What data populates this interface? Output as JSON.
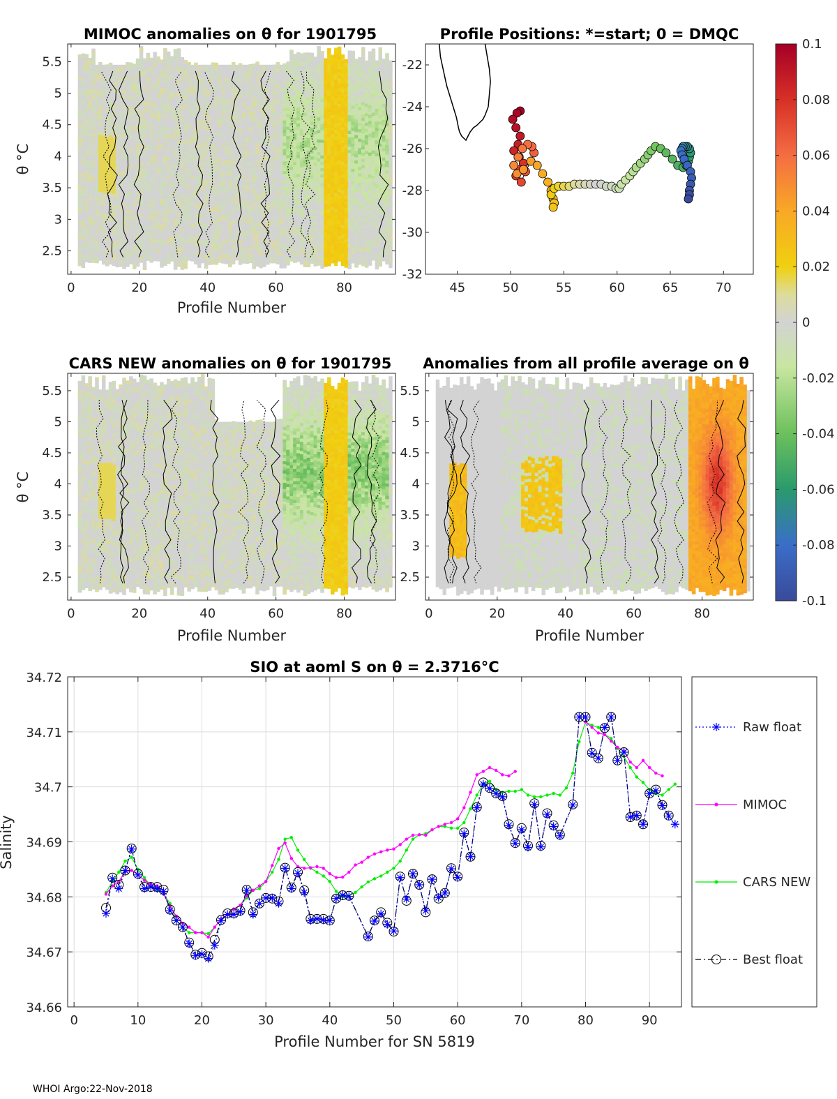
{
  "panels": {
    "mimoc": {
      "title": "MIMOC anomalies on θ  for 1901795",
      "xlabel": "Profile Number",
      "ylabel": "θ °C",
      "xticks": [
        "0",
        "20",
        "40",
        "60",
        "80"
      ],
      "yticks": [
        "2.5",
        "3",
        "3.5",
        "4",
        "4.5",
        "5",
        "5.5"
      ]
    },
    "positions": {
      "title": "Profile Positions: *=start; 0 = DMQC",
      "xticks": [
        "45",
        "50",
        "55",
        "60",
        "65",
        "70"
      ],
      "yticks": [
        "-22",
        "-24",
        "-26",
        "-28",
        "-30",
        "-32"
      ]
    },
    "cars": {
      "title": "CARS NEW anomalies on θ for 1901795",
      "xlabel": "Profile Number",
      "ylabel": "θ °C",
      "xticks": [
        "0",
        "20",
        "40",
        "60",
        "80"
      ],
      "yticks": [
        "2.5",
        "3",
        "3.5",
        "4",
        "4.5",
        "5",
        "5.5"
      ]
    },
    "average": {
      "title": "Anomalies from all profile average on θ",
      "xlabel": "Profile Number",
      "xticks": [
        "0",
        "20",
        "40",
        "60",
        "80"
      ],
      "yticks": [
        "2.5",
        "3",
        "3.5",
        "4",
        "4.5",
        "5",
        "5.5"
      ]
    }
  },
  "colorbar": {
    "ticks": [
      "0.1",
      "0.08",
      "0.06",
      "0.04",
      "0.02",
      "0",
      "-0.02",
      "-0.04",
      "-0.06",
      "-0.08",
      "-0.1"
    ],
    "stops": [
      "#a50026",
      "#d73027",
      "#f46d43",
      "#f9a825",
      "#f0d010",
      "#dcdc9c",
      "#d3d3d3",
      "#c8e6a0",
      "#6cc05c",
      "#2a9a6c",
      "#3a6ec8",
      "#3a4a9a"
    ]
  },
  "track": {
    "lon": [
      50.9,
      50.6,
      50.2,
      50.5,
      50.9,
      50.7,
      50.3,
      50.8,
      51.2,
      50.9,
      50.5,
      51.0,
      51.4,
      51.9,
      52.2,
      52.0,
      51.6,
      51.1,
      50.7,
      50.3,
      50.6,
      51.2,
      51.9,
      52.5,
      53.0,
      53.5,
      53.8,
      54.0,
      54.1,
      54.0,
      53.8,
      54.1,
      54.5,
      55.0,
      55.5,
      56.0,
      56.5,
      57.0,
      57.5,
      58.0,
      58.5,
      59.0,
      59.5,
      59.9,
      60.2,
      60.4,
      60.8,
      61.2,
      61.5,
      61.8,
      62.2,
      62.6,
      62.9,
      63.2,
      63.6,
      64.1,
      64.6,
      65.2,
      65.7,
      66.2,
      66.5,
      66.7,
      66.8,
      66.9,
      66.8,
      66.6,
      66.4,
      66.2,
      66.1,
      66.0,
      66.1,
      66.3,
      66.6,
      66.9,
      67.0,
      66.9,
      66.8,
      66.8,
      66.7
    ],
    "lat": [
      -24.2,
      -24.3,
      -24.6,
      -25.0,
      -25.4,
      -25.8,
      -26.1,
      -26.4,
      -26.7,
      -27.0,
      -27.3,
      -27.6,
      -27.1,
      -26.6,
      -26.2,
      -25.9,
      -25.8,
      -26.0,
      -26.4,
      -26.8,
      -27.2,
      -27.0,
      -26.6,
      -26.8,
      -27.2,
      -27.6,
      -28.0,
      -28.4,
      -28.6,
      -28.8,
      -28.2,
      -27.9,
      -27.8,
      -27.8,
      -27.8,
      -27.7,
      -27.7,
      -27.7,
      -27.7,
      -27.7,
      -27.7,
      -27.8,
      -27.8,
      -27.9,
      -27.9,
      -27.7,
      -27.5,
      -27.3,
      -27.1,
      -26.9,
      -26.7,
      -26.5,
      -26.3,
      -26.1,
      -25.9,
      -26.0,
      -26.2,
      -26.5,
      -26.8,
      -26.9,
      -26.8,
      -26.6,
      -26.4,
      -26.2,
      -26.0,
      -25.9,
      -25.9,
      -25.9,
      -26.0,
      -26.1,
      -26.3,
      -26.5,
      -26.8,
      -27.1,
      -27.4,
      -27.7,
      -28.0,
      -28.2,
      -28.4
    ],
    "coast_lon": [
      43.3,
      43.4,
      43.7,
      44.0,
      44.3,
      44.6,
      44.9,
      45.1,
      45.2,
      45.4,
      45.6,
      45.8,
      46.0,
      46.2,
      46.5,
      46.8,
      47.0,
      47.2,
      47.4,
      47.6,
      47.9,
      48.0,
      48.1,
      48.0,
      47.8,
      47.6
    ],
    "coast_lat": [
      -21.0,
      -21.6,
      -22.3,
      -23.0,
      -23.5,
      -24.0,
      -24.5,
      -25.0,
      -25.2,
      -25.4,
      -25.5,
      -25.6,
      -25.4,
      -25.2,
      -25.0,
      -24.9,
      -24.8,
      -24.7,
      -24.6,
      -24.4,
      -24.0,
      -23.4,
      -22.8,
      -22.2,
      -21.6,
      -21.0
    ]
  },
  "chart_data": {
    "type": "line",
    "title": "SIO at aoml S on θ = 2.3716°C",
    "xlabel": "Profile Number for SN 5819",
    "ylabel": "Salinity",
    "xlim": [
      -1,
      95
    ],
    "ylim": [
      34.66,
      34.72
    ],
    "xticks": [
      "0",
      "10",
      "20",
      "30",
      "40",
      "50",
      "60",
      "70",
      "80",
      "90"
    ],
    "yticks": [
      "34.66",
      "34.67",
      "34.68",
      "34.69",
      "34.7",
      "34.71",
      "34.72"
    ],
    "series": [
      {
        "name": "Raw float",
        "color": "#0000ff",
        "marker": "star",
        "x": [
          5,
          6,
          7,
          8,
          9,
          10,
          11,
          12,
          13,
          14,
          15,
          16,
          17,
          18,
          19,
          20,
          21,
          22,
          23,
          24,
          25,
          26,
          27,
          28,
          29,
          30,
          31,
          32,
          33,
          34,
          35,
          36,
          37,
          38,
          39,
          40,
          41,
          42,
          43,
          46,
          47,
          48,
          49,
          50,
          51,
          52,
          53,
          54,
          55,
          56,
          57,
          58,
          59,
          60,
          61,
          62,
          63,
          64,
          65,
          66,
          67,
          68,
          69,
          70,
          71,
          72,
          73,
          74,
          75,
          76,
          78,
          79,
          80,
          81,
          82,
          83,
          84,
          85,
          86,
          87,
          88,
          89,
          90,
          91,
          92,
          93,
          94
        ],
        "values": [
          34.677,
          34.6833,
          34.6815,
          34.6848,
          34.6887,
          34.684,
          34.6815,
          34.6818,
          34.6815,
          34.681,
          34.6775,
          34.6757,
          34.6745,
          34.6715,
          34.6693,
          34.6696,
          34.6688,
          34.6712,
          34.6757,
          34.6768,
          34.6768,
          34.6773,
          34.6812,
          34.6768,
          34.6788,
          34.6798,
          34.6798,
          34.6788,
          34.6852,
          34.6815,
          34.6843,
          34.6808,
          34.6757,
          34.676,
          34.6758,
          34.6757,
          34.6797,
          34.6803,
          34.6801,
          34.6727,
          34.6756,
          34.6769,
          34.675,
          34.6738,
          34.6835,
          34.6796,
          34.6842,
          34.6822,
          34.6775,
          34.6832,
          34.6799,
          34.6807,
          34.6851,
          34.6835,
          34.6915,
          34.6873,
          34.6962,
          34.7005,
          34.6997,
          34.6988,
          34.6982,
          34.693,
          34.6897,
          34.6922,
          34.689,
          34.6968,
          34.6891,
          34.695,
          34.6928,
          34.6911,
          34.6967,
          34.7127,
          34.7127,
          34.7061,
          34.7052,
          34.7108,
          34.7127,
          34.7048,
          34.7063,
          34.6945,
          34.6948,
          34.6932,
          34.6988,
          34.6993,
          34.6966,
          34.6947,
          34.6932
        ]
      },
      {
        "name": "MIMOC",
        "color": "#ff00ff",
        "marker": "dot",
        "x": [
          5,
          6,
          7,
          8,
          9,
          10,
          11,
          12,
          13,
          14,
          15,
          16,
          17,
          18,
          19,
          20,
          21,
          22,
          23,
          24,
          25,
          26,
          27,
          28,
          29,
          30,
          31,
          32,
          33,
          34,
          35,
          36,
          37,
          38,
          39,
          40,
          41,
          42,
          43,
          44,
          45,
          46,
          47,
          48,
          49,
          50,
          51,
          52,
          53,
          54,
          55,
          56,
          57,
          58,
          59,
          60,
          61,
          62,
          63,
          64,
          65,
          66,
          67,
          68,
          69
        ],
        "values": [
          34.6805,
          34.682,
          34.6828,
          34.6846,
          34.6848,
          34.684,
          34.683,
          34.6823,
          34.682,
          34.6805,
          34.6782,
          34.6765,
          34.6752,
          34.6745,
          34.6735,
          34.6735,
          34.6727,
          34.6745,
          34.676,
          34.6768,
          34.6778,
          34.6785,
          34.6802,
          34.6812,
          34.682,
          34.6828,
          34.6857,
          34.6888,
          34.6898,
          34.687,
          34.6855,
          34.6852,
          34.6853,
          34.6855,
          34.6852,
          34.6842,
          34.6835,
          34.6836,
          34.6845,
          34.6858,
          34.6863,
          34.6872,
          34.6878,
          34.6882,
          34.6885,
          34.6887,
          34.6895,
          34.6905,
          34.6912,
          34.6913,
          34.6912,
          34.6922,
          34.6928,
          34.6932,
          34.6935,
          34.6942,
          34.6962,
          34.699,
          34.7022,
          34.7028,
          34.7035,
          34.703,
          34.7022,
          34.702,
          34.7028
        ]
      },
      {
        "name": "MIMOC",
        "color": "#ff00ff",
        "marker": "dot",
        "x": [
          80,
          81,
          82,
          83,
          84,
          85,
          86,
          87,
          88,
          89,
          90,
          91,
          92
        ],
        "values": [
          34.7118,
          34.7108,
          34.7098,
          34.7095,
          34.7083,
          34.7072,
          34.7065,
          34.7045,
          34.7035,
          34.7048,
          34.7035,
          34.7025,
          34.702
        ]
      },
      {
        "name": "CARS NEW",
        "color": "#00ee00",
        "marker": "dot",
        "x": [
          5,
          6,
          7,
          8,
          9,
          10,
          11,
          12,
          13,
          14,
          15,
          16,
          17,
          18,
          19,
          20,
          21,
          22,
          23,
          24,
          25,
          26,
          27,
          28,
          29,
          30,
          31,
          32,
          33,
          34,
          35,
          36,
          37,
          38,
          39,
          40,
          41,
          42,
          43,
          44,
          45,
          46,
          47,
          48,
          49,
          50,
          51,
          52,
          53,
          54,
          55,
          56,
          57,
          58,
          59,
          60,
          61,
          62,
          63,
          64,
          65,
          66,
          67,
          68,
          69,
          70,
          71,
          72,
          73,
          74,
          75,
          76,
          77,
          78,
          79,
          80,
          81,
          82,
          83,
          84,
          85,
          86,
          87,
          88,
          89,
          90,
          91,
          92,
          93,
          94
        ],
        "values": [
          34.6808,
          34.6828,
          34.6845,
          34.6865,
          34.6872,
          34.685,
          34.6835,
          34.682,
          34.6812,
          34.6805,
          34.6788,
          34.6757,
          34.6745,
          34.6735,
          34.6735,
          34.6735,
          34.6733,
          34.6745,
          34.676,
          34.6768,
          34.6778,
          34.6785,
          34.6798,
          34.6812,
          34.6815,
          34.6828,
          34.6845,
          34.6868,
          34.6905,
          34.6908,
          34.6885,
          34.6868,
          34.6852,
          34.6845,
          34.6838,
          34.6828,
          34.681,
          34.68,
          34.6802,
          34.6808,
          34.6818,
          34.6827,
          34.6833,
          34.6838,
          34.6845,
          34.6852,
          34.6865,
          34.6885,
          34.6905,
          34.6913,
          34.6915,
          34.6922,
          34.6928,
          34.6928,
          34.6925,
          34.6925,
          34.6935,
          34.696,
          34.6985,
          34.7005,
          34.701,
          34.6995,
          34.699,
          34.6992,
          34.6992,
          34.6995,
          34.6985,
          34.6982,
          34.6982,
          34.6985,
          34.6988,
          34.6985,
          34.6998,
          34.7025,
          34.7082,
          34.7118,
          34.7112,
          34.7108,
          34.7095,
          34.7088,
          34.707,
          34.7055,
          34.7035,
          34.7018,
          34.7008,
          34.6995,
          34.6988,
          34.6985,
          34.6995,
          34.7005
        ]
      },
      {
        "name": "Best float",
        "color": "#000000",
        "marker": "circle",
        "x": [
          5,
          6,
          7,
          8,
          9,
          10,
          11,
          12,
          13,
          14,
          15,
          16,
          17,
          18,
          19,
          20,
          21,
          22,
          23,
          24,
          25,
          26,
          27,
          28,
          29,
          30,
          31,
          32,
          33,
          34,
          35,
          36,
          37,
          38,
          39,
          40,
          41,
          42,
          43,
          46,
          47,
          48,
          49,
          50,
          51,
          52,
          53,
          54,
          55,
          56,
          57,
          58,
          59,
          60,
          61,
          62,
          63,
          64,
          65,
          66,
          67,
          68,
          69,
          70,
          71,
          72,
          73,
          74,
          75,
          76,
          78,
          79,
          80,
          81,
          82,
          83,
          84,
          85,
          86,
          87,
          88,
          89,
          90,
          91,
          92,
          93
        ],
        "values": [
          34.678,
          34.6835,
          34.6822,
          34.6848,
          34.6888,
          34.6842,
          34.6818,
          34.6818,
          34.6818,
          34.6813,
          34.6777,
          34.6757,
          34.6745,
          34.6717,
          34.6695,
          34.6698,
          34.6692,
          34.6722,
          34.6758,
          34.677,
          34.677,
          34.6775,
          34.6813,
          34.6772,
          34.6788,
          34.6798,
          34.6797,
          34.6792,
          34.6853,
          34.6817,
          34.6845,
          34.6812,
          34.676,
          34.676,
          34.676,
          34.6757,
          34.6797,
          34.6803,
          34.6802,
          34.6728,
          34.6757,
          34.6772,
          34.6753,
          34.6737,
          34.6837,
          34.6793,
          34.6842,
          34.6822,
          34.6772,
          34.6832,
          34.6797,
          34.6807,
          34.6852,
          34.6837,
          34.6917,
          34.6873,
          34.6963,
          34.7008,
          34.6998,
          34.6988,
          34.6983,
          34.6932,
          34.6898,
          34.6925,
          34.6893,
          34.697,
          34.6893,
          34.6952,
          34.693,
          34.6913,
          34.6968,
          34.7127,
          34.7127,
          34.7062,
          34.7052,
          34.7107,
          34.7127,
          34.7048,
          34.7063,
          34.6945,
          34.6948,
          34.6932,
          34.6988,
          34.6995,
          34.6967,
          34.6948
        ]
      }
    ],
    "legend": [
      "Raw float",
      "MIMOC",
      "CARS NEW",
      "Best float"
    ]
  },
  "footer": "WHOI Argo:22-Nov-2018"
}
